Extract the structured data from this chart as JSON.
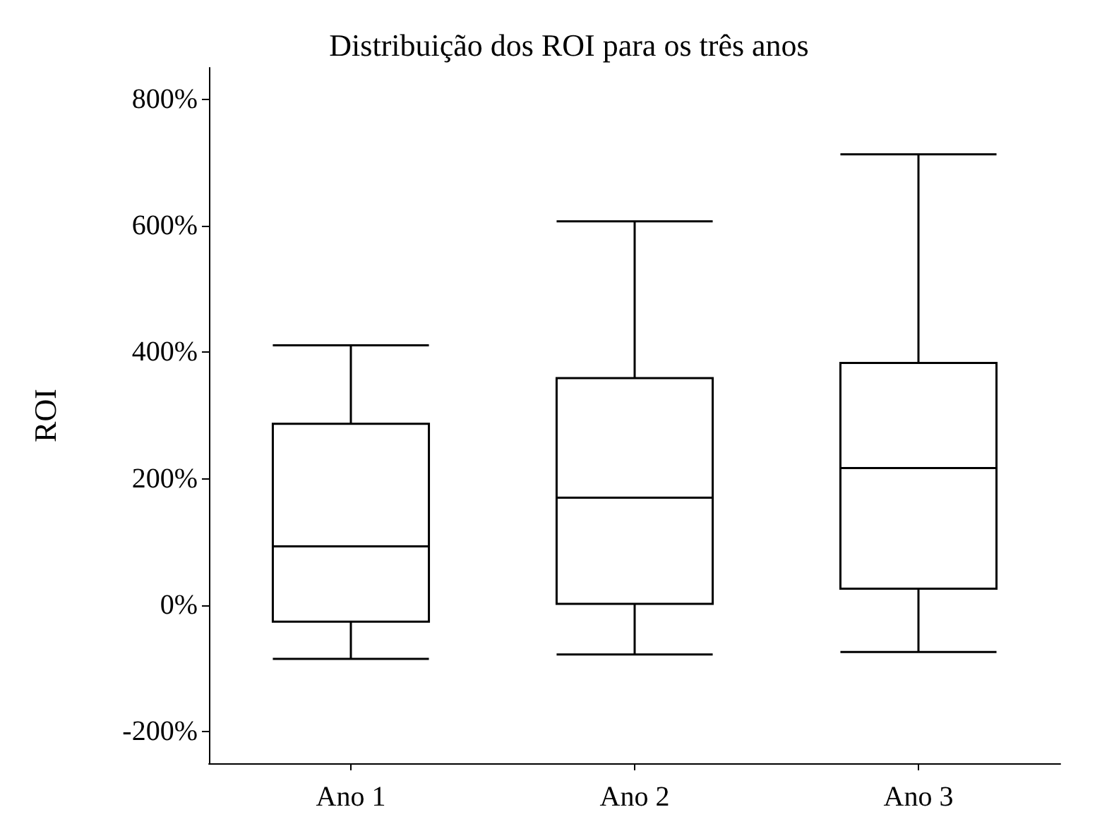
{
  "chart_data": {
    "type": "box",
    "title": "Distribuição dos ROI para os três anos",
    "ylabel": "ROI",
    "categories": [
      "Ano 1",
      "Ano 2",
      "Ano 3"
    ],
    "boxes": [
      {
        "low": -85,
        "q1": -26,
        "median": 93,
        "q3": 287,
        "high": 411
      },
      {
        "low": -78,
        "q1": 2,
        "median": 170,
        "q3": 359,
        "high": 607
      },
      {
        "low": -74,
        "q1": 26,
        "median": 217,
        "q3": 383,
        "high": 713
      }
    ],
    "color": "#000000",
    "ylim": [
      -250,
      850
    ],
    "yticks": [
      {
        "value": -200,
        "label": "-200%"
      },
      {
        "value": 0,
        "label": "0%"
      },
      {
        "value": 200,
        "label": "200%"
      },
      {
        "value": 400,
        "label": "400%"
      },
      {
        "value": 600,
        "label": "600%"
      },
      {
        "value": 800,
        "label": "800%"
      }
    ],
    "grid": false
  }
}
